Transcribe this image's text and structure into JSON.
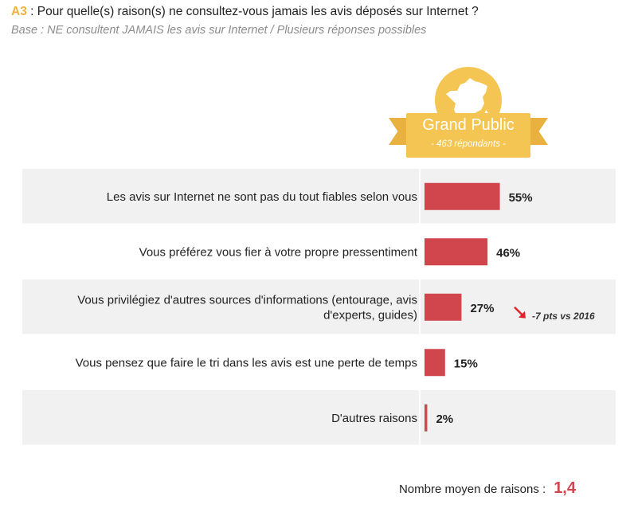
{
  "header": {
    "code": "A3",
    "question": " : Pour quelle(s) raison(s) ne consultez-vous jamais les avis déposés sur Internet ?",
    "subtitle": "Base : NE consultent JAMAIS les avis sur Internet  / Plusieurs réponses possibles"
  },
  "badge": {
    "title": "Grand Public",
    "subtitle": "- 463 répondants -",
    "icon": "france-map-icon"
  },
  "colors": {
    "accent": "#f5c553",
    "bar": "#d1454d",
    "trend": "#e0222b",
    "row_band": "#f1f1f1"
  },
  "chart_data": {
    "type": "bar",
    "orientation": "horizontal",
    "categories": [
      [
        "Les avis sur Internet ne sont pas du tout fiables selon vous"
      ],
      [
        "Vous préférez vous fier à votre propre pressentiment"
      ],
      [
        "Vous privilégiez d'autres sources d'informations (entourage, avis",
        "d'experts, guides)"
      ],
      [
        "Vous pensez que faire le tri dans les avis est une perte de temps"
      ],
      [
        "D'autres raisons"
      ]
    ],
    "values": [
      55,
      46,
      27,
      15,
      2
    ],
    "value_labels": [
      "55%",
      "46%",
      "27%",
      "15%",
      "2%"
    ],
    "unit": "%",
    "annotations": [
      {
        "category_index": 2,
        "text": "-7 pts vs 2016",
        "direction": "down"
      }
    ]
  },
  "footer": {
    "label": "Nombre moyen de raisons :",
    "value": "1,4"
  }
}
